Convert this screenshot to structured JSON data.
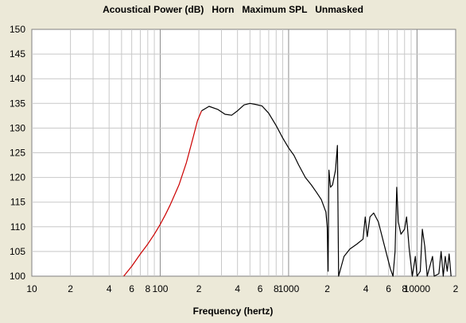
{
  "title": "Acoustical Power (dB)   Horn   Maximum SPL   Unmasked",
  "chart_data": {
    "type": "line",
    "title": "Acoustical Power (dB)   Horn   Maximum SPL   Unmasked",
    "xlabel": "Frequency (hertz)",
    "ylabel": "",
    "xscale": "log",
    "xlim": [
      10,
      20000
    ],
    "ylim": [
      100,
      150
    ],
    "grid": true,
    "x_tick_labels": [
      {
        "value": 10,
        "label": "10"
      },
      {
        "value": 20,
        "label": "2"
      },
      {
        "value": 40,
        "label": "4"
      },
      {
        "value": 60,
        "label": "6"
      },
      {
        "value": 80,
        "label": "8"
      },
      {
        "value": 100,
        "label": "100"
      },
      {
        "value": 200,
        "label": "2"
      },
      {
        "value": 400,
        "label": "4"
      },
      {
        "value": 600,
        "label": "6"
      },
      {
        "value": 800,
        "label": "8"
      },
      {
        "value": 1000,
        "label": "1000"
      },
      {
        "value": 2000,
        "label": "2"
      },
      {
        "value": 4000,
        "label": "4"
      },
      {
        "value": 6000,
        "label": "6"
      },
      {
        "value": 8000,
        "label": "8"
      },
      {
        "value": 10000,
        "label": "10000"
      },
      {
        "value": 20000,
        "label": "2"
      }
    ],
    "y_ticks": [
      100,
      105,
      110,
      115,
      120,
      125,
      130,
      135,
      140,
      145,
      150
    ],
    "series": [
      {
        "color": "#cc0000",
        "points": [
          [
            52,
            100
          ],
          [
            60,
            102
          ],
          [
            70,
            104.5
          ],
          [
            80,
            106.5
          ],
          [
            90,
            108.5
          ],
          [
            100,
            110.5
          ],
          [
            110,
            112.5
          ],
          [
            120,
            114.5
          ],
          [
            140,
            118.5
          ],
          [
            160,
            123
          ],
          [
            180,
            128
          ],
          [
            195,
            131.5
          ],
          [
            210,
            133.5
          ]
        ]
      },
      {
        "color": "#000000",
        "points": [
          [
            210,
            133.5
          ],
          [
            240,
            134.4
          ],
          [
            280,
            133.8
          ],
          [
            320,
            132.8
          ],
          [
            360,
            132.6
          ],
          [
            400,
            133.5
          ],
          [
            450,
            134.7
          ],
          [
            500,
            135.0
          ],
          [
            550,
            134.8
          ],
          [
            620,
            134.5
          ],
          [
            700,
            133.0
          ],
          [
            800,
            130.5
          ],
          [
            900,
            128.0
          ],
          [
            1000,
            126.0
          ],
          [
            1100,
            124.5
          ],
          [
            1200,
            122.5
          ],
          [
            1350,
            120.0
          ],
          [
            1500,
            118.5
          ],
          [
            1650,
            117.0
          ],
          [
            1800,
            115.5
          ],
          [
            1950,
            113.0
          ],
          [
            2000,
            110.0
          ],
          [
            2030,
            101.0
          ],
          [
            2060,
            121.5
          ],
          [
            2120,
            118.0
          ],
          [
            2200,
            118.5
          ],
          [
            2320,
            121.5
          ],
          [
            2400,
            126.5
          ],
          [
            2450,
            100.0
          ],
          [
            2700,
            104.0
          ],
          [
            3000,
            105.5
          ],
          [
            3400,
            106.5
          ],
          [
            3800,
            107.5
          ],
          [
            3950,
            112.0
          ],
          [
            4100,
            108.0
          ],
          [
            4300,
            112.0
          ],
          [
            4600,
            112.8
          ],
          [
            5000,
            111.0
          ],
          [
            5600,
            106.0
          ],
          [
            6200,
            101.5
          ],
          [
            6500,
            100.0
          ],
          [
            6750,
            105.0
          ],
          [
            6950,
            118.0
          ],
          [
            7150,
            111.0
          ],
          [
            7500,
            108.5
          ],
          [
            8000,
            109.5
          ],
          [
            8300,
            112.0
          ],
          [
            8700,
            105.5
          ],
          [
            9200,
            100.0
          ],
          [
            9700,
            104.0
          ],
          [
            10000,
            100.0
          ],
          [
            10600,
            101.0
          ],
          [
            11000,
            109.5
          ],
          [
            11500,
            106.0
          ],
          [
            12000,
            100.0
          ],
          [
            13200,
            104.0
          ],
          [
            13600,
            100.0
          ],
          [
            14800,
            100.5
          ],
          [
            15400,
            105.0
          ],
          [
            16000,
            100.0
          ],
          [
            16600,
            104.0
          ],
          [
            17200,
            101.0
          ],
          [
            17800,
            104.5
          ],
          [
            18400,
            100.0
          ]
        ]
      }
    ]
  }
}
